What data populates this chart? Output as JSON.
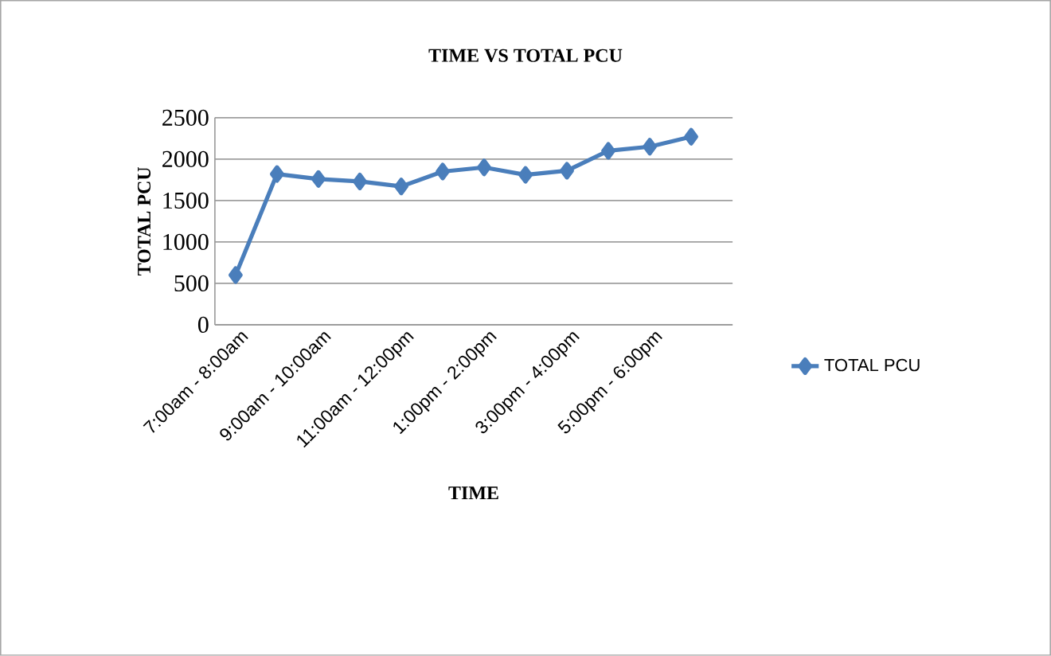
{
  "chart_data": {
    "type": "line",
    "title": "TIME VS TOTAL PCU",
    "xlabel": "TIME",
    "ylabel": "TOTAL PCU",
    "categories": [
      "7:00am - 8:00am",
      null,
      "9:00am - 10:00am",
      null,
      "11:00am - 12:00pm",
      null,
      "1:00pm - 2:00pm",
      null,
      "3:00pm - 4:00pm",
      null,
      "5:00pm - 6:00pm",
      null
    ],
    "series": [
      {
        "name": "TOTAL PCU",
        "color": "#4a7ebb",
        "values": [
          600,
          1820,
          1760,
          1730,
          1670,
          1850,
          1900,
          1810,
          1860,
          2100,
          2150,
          2270
        ]
      }
    ],
    "ylim": [
      0,
      2500
    ],
    "yticks": [
      0,
      500,
      1000,
      1500,
      2000,
      2500
    ],
    "grid": "y",
    "legend": "right",
    "marker": "diamond",
    "line_style": "solid"
  }
}
